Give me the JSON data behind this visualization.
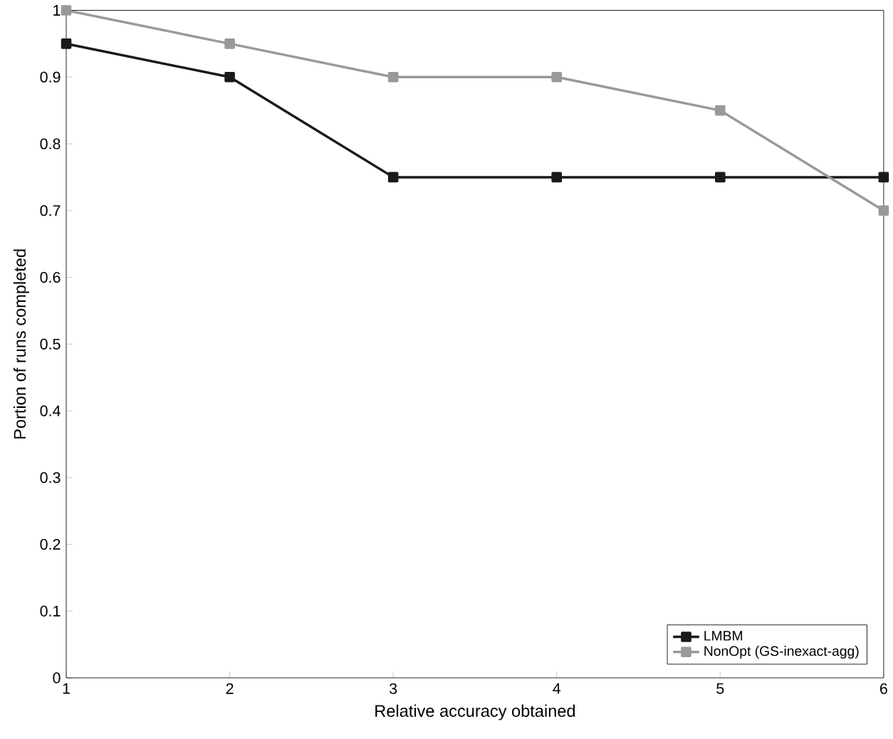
{
  "chart_data": {
    "type": "line",
    "xlabel": "Relative accuracy obtained",
    "ylabel": "Portion of runs completed",
    "x": [
      1,
      2,
      3,
      4,
      5,
      6
    ],
    "series": [
      {
        "name": "LMBM",
        "color": "#1a1a1a",
        "values": [
          0.95,
          0.9,
          0.75,
          0.75,
          0.75,
          0.75
        ]
      },
      {
        "name": "NonOpt (GS-inexact-agg)",
        "color": "#999999",
        "values": [
          1,
          0.95,
          0.9,
          0.9,
          0.85,
          0.7
        ]
      }
    ],
    "xlim": [
      1,
      6
    ],
    "ylim": [
      0,
      1
    ],
    "xticks": [
      1,
      2,
      3,
      4,
      5,
      6
    ],
    "yticks": [
      0,
      0.1,
      0.2,
      0.3,
      0.4,
      0.5,
      0.6,
      0.7,
      0.8,
      0.9,
      1
    ],
    "legend": "bottom right",
    "marker": "square",
    "line_style": "solid",
    "grid": false
  }
}
